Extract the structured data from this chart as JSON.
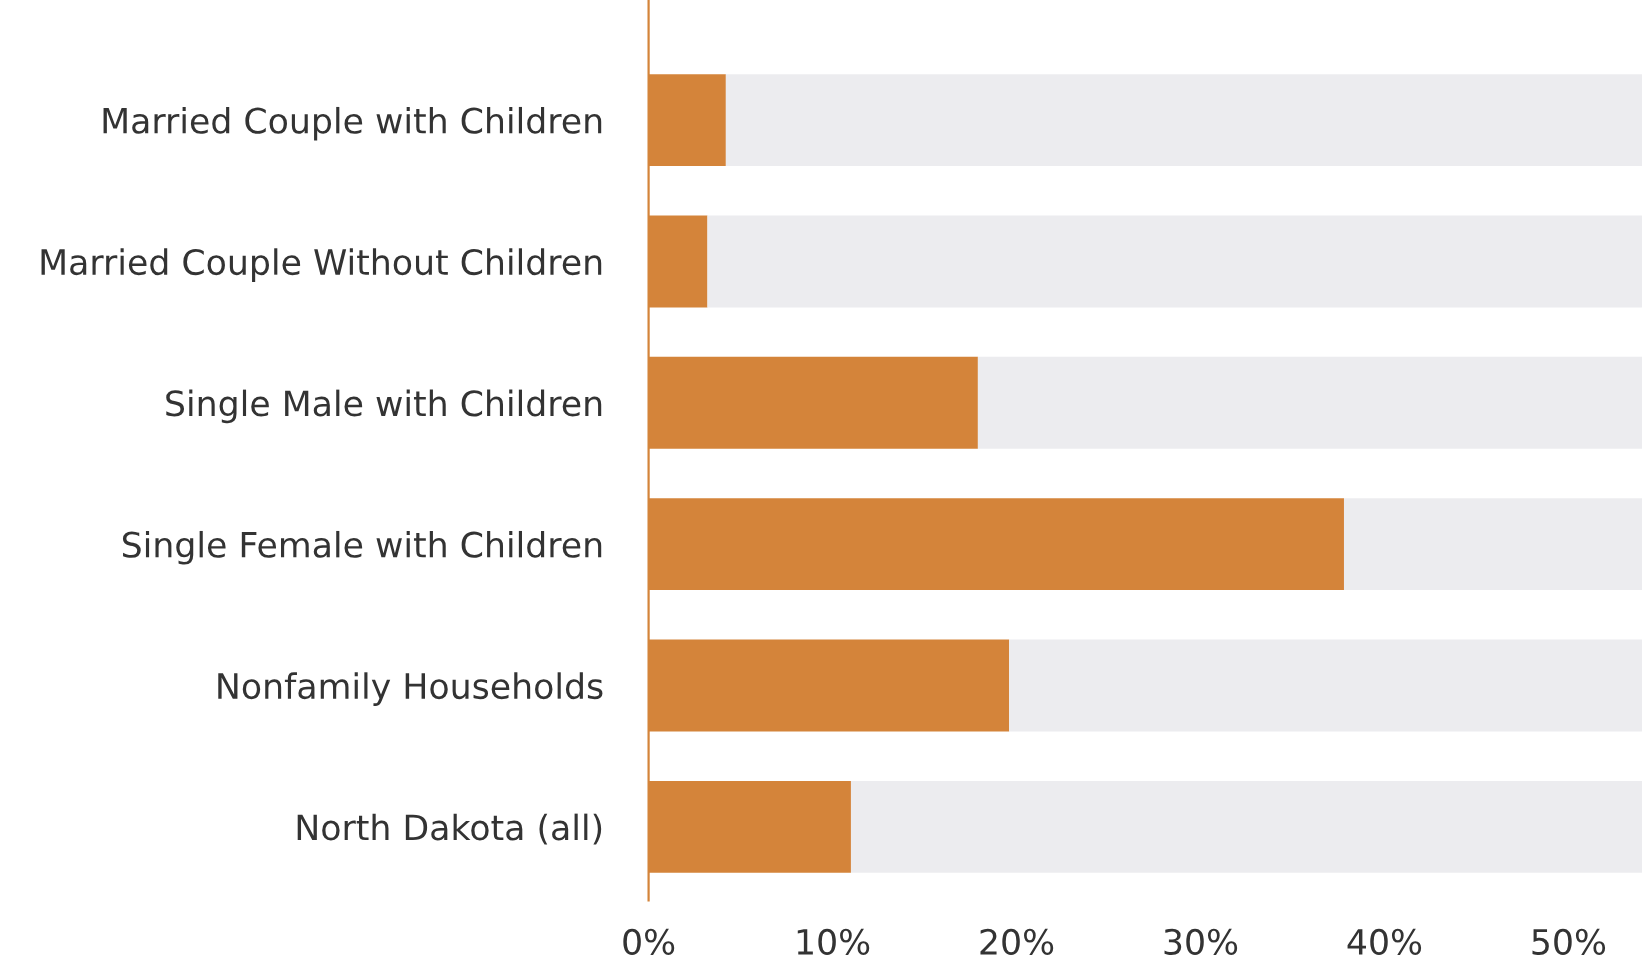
{
  "chart_data": {
    "type": "bar",
    "orientation": "horizontal",
    "stacked": true,
    "categories": [
      "Married Couple with Children",
      "Married Couple Without Children",
      "Single Male with Children",
      "Single Female with Children",
      "Nonfamily Households",
      "North Dakota (all)"
    ],
    "series": [
      {
        "color": "#d4843a",
        "values": [
          4.2,
          3.2,
          17.9,
          37.8,
          19.6,
          11.0
        ]
      },
      {
        "color": "#ececef",
        "values": [
          49.8,
          50.8,
          36.1,
          16.2,
          34.4,
          43.0
        ]
      }
    ],
    "xlim": [
      0,
      54
    ],
    "xticks": [
      {
        "value": 0,
        "label": "0%"
      },
      {
        "value": 10,
        "label": "10%"
      },
      {
        "value": 20,
        "label": "20%"
      },
      {
        "value": 30,
        "label": "30%"
      },
      {
        "value": 40,
        "label": "40%"
      },
      {
        "value": 50,
        "label": "50%"
      }
    ],
    "grid": false,
    "legend": false
  }
}
